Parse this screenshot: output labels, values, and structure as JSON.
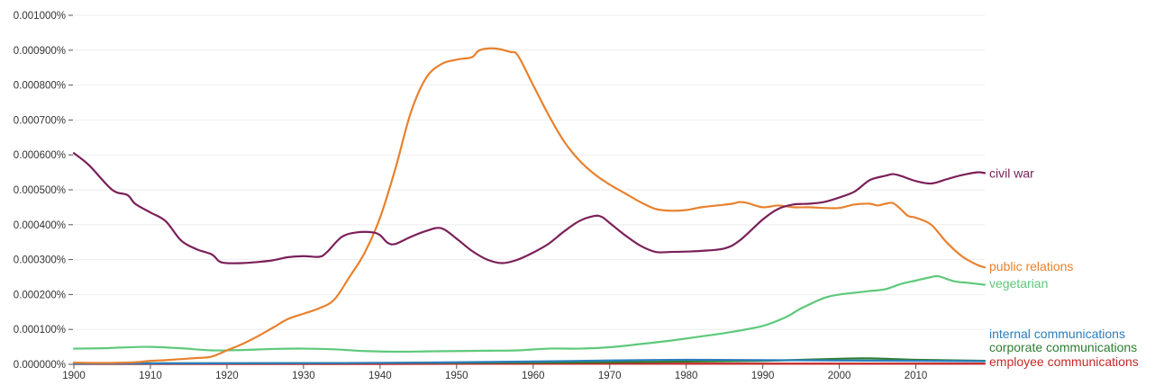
{
  "chart_data": {
    "type": "line",
    "title": "",
    "xlabel": "",
    "ylabel": "",
    "xlim": [
      1900,
      2019
    ],
    "ylim": [
      0,
      0.001
    ],
    "grid": true,
    "legend": "right-end labels",
    "x_ticks": [
      1900,
      1910,
      1920,
      1930,
      1940,
      1950,
      1960,
      1970,
      1980,
      1990,
      2000,
      2010
    ],
    "y_ticks": [
      {
        "value": 0.001,
        "label": "0.001000%"
      },
      {
        "value": 0.0009,
        "label": "0.000900%"
      },
      {
        "value": 0.0008,
        "label": "0.000800%"
      },
      {
        "value": 0.0007,
        "label": "0.000700%"
      },
      {
        "value": 0.0006,
        "label": "0.000600%"
      },
      {
        "value": 0.0005,
        "label": "0.000500%"
      },
      {
        "value": 0.0004,
        "label": "0.000400%"
      },
      {
        "value": 0.0003,
        "label": "0.000300%"
      },
      {
        "value": 0.0002,
        "label": "0.000200%"
      },
      {
        "value": 0.0001,
        "label": "0.000100%"
      },
      {
        "value": 0.0,
        "label": "0.000000%"
      }
    ],
    "series": [
      {
        "name": "civil war",
        "color": "#7b2059",
        "points": [
          [
            1900,
            0.000605
          ],
          [
            1902,
            0.00057
          ],
          [
            1905,
            0.0005
          ],
          [
            1907,
            0.000485
          ],
          [
            1908,
            0.00046
          ],
          [
            1910,
            0.000435
          ],
          [
            1912,
            0.00041
          ],
          [
            1914,
            0.000355
          ],
          [
            1916,
            0.00033
          ],
          [
            1918,
            0.000315
          ],
          [
            1919,
            0.000295
          ],
          [
            1920,
            0.00029
          ],
          [
            1922,
            0.00029
          ],
          [
            1924,
            0.000293
          ],
          [
            1926,
            0.000298
          ],
          [
            1928,
            0.000307
          ],
          [
            1930,
            0.00031
          ],
          [
            1932,
            0.000308
          ],
          [
            1933,
            0.00032
          ],
          [
            1935,
            0.000365
          ],
          [
            1937,
            0.000378
          ],
          [
            1939,
            0.000378
          ],
          [
            1940,
            0.00037
          ],
          [
            1941,
            0.000348
          ],
          [
            1942,
            0.000345
          ],
          [
            1944,
            0.000365
          ],
          [
            1946,
            0.000382
          ],
          [
            1948,
            0.00039
          ],
          [
            1950,
            0.00036
          ],
          [
            1952,
            0.000325
          ],
          [
            1954,
            0.0003
          ],
          [
            1956,
            0.00029
          ],
          [
            1958,
            0.0003
          ],
          [
            1960,
            0.00032
          ],
          [
            1962,
            0.000345
          ],
          [
            1964,
            0.00038
          ],
          [
            1966,
            0.00041
          ],
          [
            1968,
            0.000425
          ],
          [
            1969,
            0.000422
          ],
          [
            1970,
            0.000405
          ],
          [
            1972,
            0.00037
          ],
          [
            1974,
            0.00034
          ],
          [
            1976,
            0.000322
          ],
          [
            1978,
            0.000322
          ],
          [
            1980,
            0.000323
          ],
          [
            1982,
            0.000325
          ],
          [
            1985,
            0.000332
          ],
          [
            1987,
            0.000355
          ],
          [
            1990,
            0.000415
          ],
          [
            1992,
            0.000445
          ],
          [
            1994,
            0.000458
          ],
          [
            1996,
            0.00046
          ],
          [
            1998,
            0.000465
          ],
          [
            2000,
            0.000478
          ],
          [
            2002,
            0.000495
          ],
          [
            2004,
            0.000528
          ],
          [
            2006,
            0.00054
          ],
          [
            2007,
            0.000545
          ],
          [
            2008,
            0.00054
          ],
          [
            2010,
            0.000525
          ],
          [
            2012,
            0.000518
          ],
          [
            2014,
            0.00053
          ],
          [
            2016,
            0.000542
          ],
          [
            2018,
            0.00055
          ],
          [
            2019,
            0.000548
          ]
        ]
      },
      {
        "name": "public relations",
        "color": "#e8812e",
        "points": [
          [
            1900,
            5e-06
          ],
          [
            1904,
            4e-06
          ],
          [
            1908,
            6e-06
          ],
          [
            1910,
            1e-05
          ],
          [
            1912,
            1.2e-05
          ],
          [
            1914,
            1.5e-05
          ],
          [
            1916,
            1.8e-05
          ],
          [
            1918,
            2.2e-05
          ],
          [
            1920,
            4e-05
          ],
          [
            1922,
            5.8e-05
          ],
          [
            1924,
            8e-05
          ],
          [
            1926,
            0.000105
          ],
          [
            1928,
            0.00013
          ],
          [
            1930,
            0.000145
          ],
          [
            1932,
            0.00016
          ],
          [
            1934,
            0.000185
          ],
          [
            1936,
            0.00025
          ],
          [
            1938,
            0.00032
          ],
          [
            1940,
            0.00042
          ],
          [
            1942,
            0.00056
          ],
          [
            1944,
            0.00072
          ],
          [
            1946,
            0.00082
          ],
          [
            1948,
            0.00086
          ],
          [
            1950,
            0.000873
          ],
          [
            1952,
            0.00088
          ],
          [
            1953,
            0.0009
          ],
          [
            1955,
            0.000905
          ],
          [
            1957,
            0.000895
          ],
          [
            1958,
            0.000885
          ],
          [
            1960,
            0.0008
          ],
          [
            1962,
            0.000715
          ],
          [
            1964,
            0.00064
          ],
          [
            1966,
            0.000585
          ],
          [
            1968,
            0.000545
          ],
          [
            1970,
            0.000515
          ],
          [
            1972,
            0.00049
          ],
          [
            1974,
            0.000465
          ],
          [
            1976,
            0.000445
          ],
          [
            1978,
            0.00044
          ],
          [
            1980,
            0.000442
          ],
          [
            1982,
            0.00045
          ],
          [
            1984,
            0.000455
          ],
          [
            1986,
            0.00046
          ],
          [
            1987,
            0.000465
          ],
          [
            1988,
            0.000462
          ],
          [
            1990,
            0.00045
          ],
          [
            1992,
            0.000455
          ],
          [
            1994,
            0.00045
          ],
          [
            1996,
            0.00045
          ],
          [
            1998,
            0.000448
          ],
          [
            2000,
            0.000448
          ],
          [
            2002,
            0.000458
          ],
          [
            2004,
            0.00046
          ],
          [
            2005,
            0.000455
          ],
          [
            2006,
            0.00046
          ],
          [
            2007,
            0.000462
          ],
          [
            2008,
            0.000445
          ],
          [
            2009,
            0.000425
          ],
          [
            2010,
            0.00042
          ],
          [
            2012,
            0.0004
          ],
          [
            2014,
            0.00035
          ],
          [
            2016,
            0.00031
          ],
          [
            2018,
            0.000285
          ],
          [
            2019,
            0.000278
          ]
        ]
      },
      {
        "name": "vegetarian",
        "color": "#5ec97b",
        "points": [
          [
            1900,
            4.5e-05
          ],
          [
            1904,
            4.6e-05
          ],
          [
            1906,
            4.8e-05
          ],
          [
            1910,
            5e-05
          ],
          [
            1914,
            4.6e-05
          ],
          [
            1918,
            4e-05
          ],
          [
            1922,
            4.1e-05
          ],
          [
            1926,
            4.4e-05
          ],
          [
            1930,
            4.5e-05
          ],
          [
            1934,
            4.3e-05
          ],
          [
            1938,
            3.8e-05
          ],
          [
            1942,
            3.6e-05
          ],
          [
            1946,
            3.7e-05
          ],
          [
            1950,
            3.8e-05
          ],
          [
            1954,
            3.9e-05
          ],
          [
            1958,
            4e-05
          ],
          [
            1962,
            4.5e-05
          ],
          [
            1966,
            4.5e-05
          ],
          [
            1970,
            4.9e-05
          ],
          [
            1974,
            5.8e-05
          ],
          [
            1978,
            6.8e-05
          ],
          [
            1982,
            8e-05
          ],
          [
            1986,
            9.3e-05
          ],
          [
            1990,
            0.00011
          ],
          [
            1993,
            0.000135
          ],
          [
            1995,
            0.00016
          ],
          [
            1998,
            0.00019
          ],
          [
            2000,
            0.0002
          ],
          [
            2002,
            0.000205
          ],
          [
            2004,
            0.00021
          ],
          [
            2006,
            0.000215
          ],
          [
            2008,
            0.00023
          ],
          [
            2010,
            0.00024
          ],
          [
            2012,
            0.00025
          ],
          [
            2013,
            0.000252
          ],
          [
            2015,
            0.000238
          ],
          [
            2017,
            0.000233
          ],
          [
            2019,
            0.000228
          ]
        ]
      },
      {
        "name": "internal communications",
        "color": "#2a7ebd",
        "points": [
          [
            1900,
            2e-06
          ],
          [
            1920,
            3e-06
          ],
          [
            1940,
            4e-06
          ],
          [
            1960,
            8e-06
          ],
          [
            1970,
            1.1e-05
          ],
          [
            1980,
            1.3e-05
          ],
          [
            1990,
            1.2e-05
          ],
          [
            2000,
            1.1e-05
          ],
          [
            2010,
            1e-05
          ],
          [
            2019,
            9e-06
          ]
        ]
      },
      {
        "name": "corporate communications",
        "color": "#2e7d32",
        "points": [
          [
            1900,
            3e-06
          ],
          [
            1920,
            3e-06
          ],
          [
            1940,
            4e-06
          ],
          [
            1960,
            5e-06
          ],
          [
            1970,
            6e-06
          ],
          [
            1980,
            8e-06
          ],
          [
            1990,
            1e-05
          ],
          [
            2000,
            1.6e-05
          ],
          [
            2004,
            1.7e-05
          ],
          [
            2010,
            1.3e-05
          ],
          [
            2019,
            1e-05
          ]
        ]
      },
      {
        "name": "employee communications",
        "color": "#c62828",
        "points": [
          [
            1900,
            1e-06
          ],
          [
            1920,
            1e-06
          ],
          [
            1940,
            1e-06
          ],
          [
            1960,
            2e-06
          ],
          [
            1980,
            2e-06
          ],
          [
            2000,
            2e-06
          ],
          [
            2019,
            2e-06
          ]
        ]
      }
    ]
  }
}
